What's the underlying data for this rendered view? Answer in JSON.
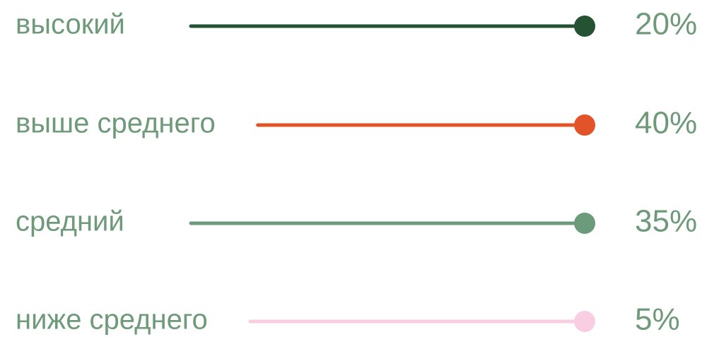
{
  "items": [
    {
      "label": "высокий",
      "value": "20%",
      "color": "#245232"
    },
    {
      "label": "выше среднего",
      "value": "40%",
      "color": "#e3532a"
    },
    {
      "label": "средний",
      "value": "35%",
      "color": "#6c9b7b"
    },
    {
      "label": "ниже среднего",
      "value": "5%",
      "color": "#f9cde2"
    }
  ]
}
